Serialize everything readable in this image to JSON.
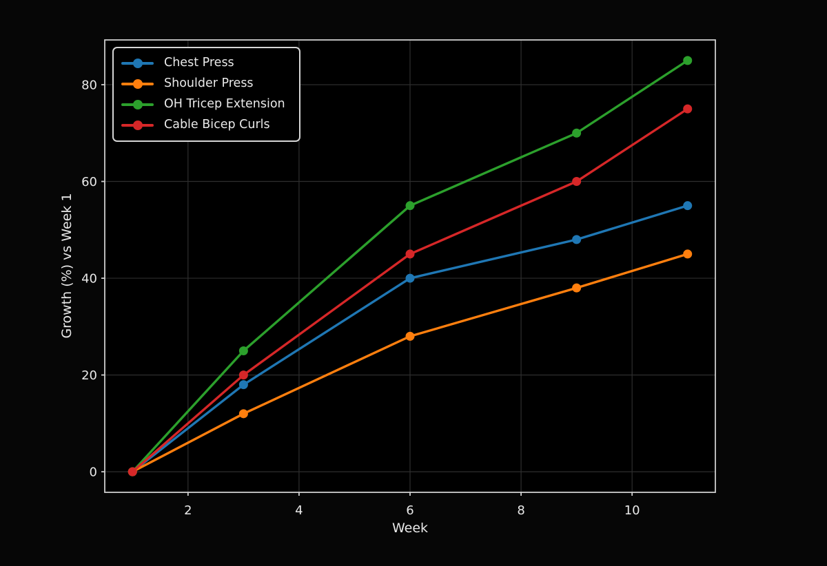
{
  "figure": {
    "background": "#060606",
    "plot_background": "#000000",
    "grid_color": "#2e2e2e",
    "spine_color": "#cfcfcf",
    "text_color": "#e9e9e9",
    "legend": {
      "border_color": "#d6d6d6",
      "background": "#000000",
      "position": "upper left"
    }
  },
  "chart_data": {
    "type": "line",
    "xlabel": "Week",
    "ylabel": "Growth (%) vs Week 1",
    "x": [
      1,
      3,
      6,
      9,
      11
    ],
    "series": [
      {
        "name": "Chest Press",
        "color": "#1f77b4",
        "values": [
          0,
          18,
          40,
          48,
          55
        ]
      },
      {
        "name": "Shoulder Press",
        "color": "#ff7f0e",
        "values": [
          0,
          12,
          28,
          38,
          45
        ]
      },
      {
        "name": "OH Tricep Extension",
        "color": "#2ca02c",
        "values": [
          0,
          25,
          55,
          70,
          85
        ]
      },
      {
        "name": "Cable Bicep Curls",
        "color": "#d62728",
        "values": [
          0,
          20,
          45,
          60,
          75
        ]
      }
    ],
    "xticks": [
      2,
      4,
      6,
      8,
      10
    ],
    "yticks": [
      0,
      20,
      40,
      60,
      80
    ],
    "xlim": [
      0.5,
      11.5
    ],
    "ylim": [
      -4.25,
      89.25
    ],
    "grid": true,
    "legend_position": "upper left"
  }
}
